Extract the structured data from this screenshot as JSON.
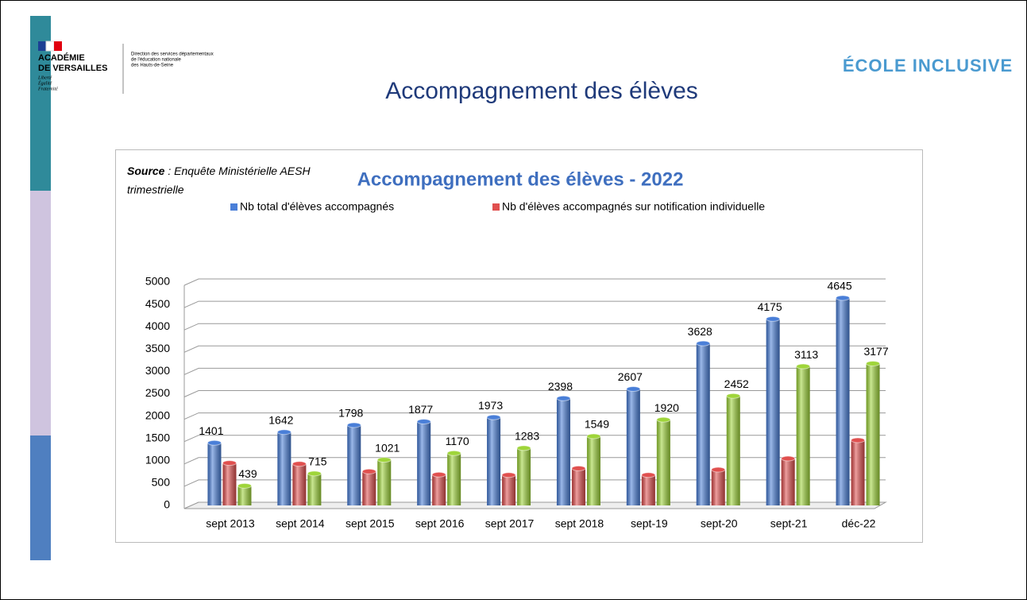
{
  "header": {
    "logo_lines": [
      "ACADÉMIE",
      "DE VERSAILLES"
    ],
    "motto": [
      "Liberté",
      "Égalité",
      "Fraternité"
    ],
    "direction": [
      "Direction des services départementaux",
      "de l'éducation nationale",
      "des Hauts-de-Seine"
    ],
    "slide_title": "Accompagnement des élèves",
    "badge": "ÉCOLE INCLUSIVE"
  },
  "chart_data": {
    "type": "bar",
    "title": "Accompagnement des élèves - 2022",
    "source_label": "Source",
    "source_lines": [
      ": Enquête Ministérielle AESH",
      "trimestrielle"
    ],
    "categories": [
      "sept 2013",
      "sept 2014",
      "sept 2015",
      "sept 2016",
      "sept 2017",
      "sept 2018",
      "sept-19",
      "sept-20",
      "sept-21",
      "déc-22"
    ],
    "series": [
      {
        "name": "Nb total d'élèves accompagnés",
        "color": "#4a7fd8",
        "show_labels": true,
        "values": [
          1401,
          1642,
          1798,
          1877,
          1973,
          2398,
          2607,
          3628,
          4175,
          4645
        ]
      },
      {
        "name": "Nb d'élèves accompagnés sur notification individuelle",
        "color": "#e0504f",
        "show_labels": false,
        "values": [
          950,
          930,
          760,
          690,
          680,
          830,
          680,
          800,
          1050,
          1460
        ]
      },
      {
        "color": "#9fd53a",
        "show_labels": true,
        "values": [
          439,
          715,
          1021,
          1170,
          1283,
          1549,
          1920,
          2452,
          3113,
          3177
        ]
      }
    ],
    "ylim": [
      0,
      5000
    ],
    "yticks": [
      0,
      500,
      1000,
      1500,
      2000,
      2500,
      3000,
      3500,
      4000,
      4500,
      5000
    ],
    "grid": true
  }
}
